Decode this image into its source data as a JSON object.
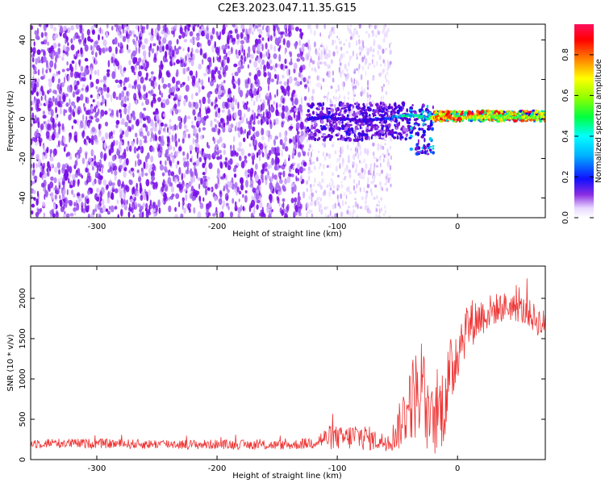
{
  "title": "C2E3.2023.047.11.35.G15",
  "chart_data": [
    {
      "type": "heatmap",
      "xlabel": "Height of straight line (km)",
      "ylabel": "Frequency (Hz)",
      "xlim": [
        -355,
        73
      ],
      "ylim": [
        -50,
        48
      ],
      "xticks": [
        -300,
        -200,
        -100,
        0
      ],
      "yticks": [
        -40,
        -20,
        0,
        20,
        40
      ],
      "colorbar": {
        "label": "Normalized spectral amplitude",
        "range": [
          0.0,
          0.95
        ],
        "ticks": [
          0.0,
          0.2,
          0.4,
          0.6,
          0.8
        ],
        "tick_labels": [
          "0.0",
          "0.2",
          "0.4",
          "0.6",
          "0.8"
        ]
      },
      "colormap_stops": [
        "#ffffff",
        "#d8b8ff",
        "#8a2be2",
        "#5a00d0",
        "#1010ff",
        "#00c8ff",
        "#00ff60",
        "#90ff00",
        "#ffff00",
        "#ff8000",
        "#ff0000",
        "#ff1060"
      ],
      "regions": [
        {
          "x_range": [
            -355,
            -125
          ],
          "freq_range": [
            -50,
            48
          ],
          "amplitude": 0.06,
          "note": "broadband noise, dense"
        },
        {
          "x_range": [
            -125,
            -55
          ],
          "freq_range": [
            -50,
            48
          ],
          "amplitude": 0.02,
          "note": "sparse noise streaks"
        },
        {
          "x_range": [
            -125,
            -40
          ],
          "freq_range": [
            -11,
            8
          ],
          "amplitude": 0.25
        },
        {
          "x_range": [
            -40,
            -20
          ],
          "freq_range": [
            -18,
            7
          ],
          "amplitude": 0.35
        },
        {
          "x_range": [
            -20,
            73
          ],
          "freq_range": [
            -1,
            4
          ],
          "amplitude": 0.7
        }
      ],
      "ridge": {
        "x": [
          -125,
          -110,
          -100,
          -90,
          -80,
          -70,
          -60,
          -50,
          -40,
          -30,
          -25,
          -20,
          -15,
          -10,
          -5,
          0,
          10,
          20,
          30,
          40,
          50,
          60,
          73
        ],
        "freq": [
          0,
          1,
          0,
          0,
          -1,
          0,
          0,
          1,
          2,
          1,
          0,
          1,
          0,
          1,
          0,
          0,
          1,
          1,
          1,
          1,
          1,
          1,
          1
        ],
        "amplitude": [
          0.3,
          0.35,
          0.3,
          0.3,
          0.3,
          0.35,
          0.35,
          0.45,
          0.5,
          0.5,
          0.45,
          0.8,
          0.85,
          0.9,
          0.85,
          0.9,
          0.7,
          0.65,
          0.65,
          0.65,
          0.65,
          0.65,
          0.65
        ]
      }
    },
    {
      "type": "line",
      "xlabel": "Height of straight line (km)",
      "ylabel": "SNR (10 * v/v)",
      "xlim": [
        -355,
        73
      ],
      "ylim": [
        0,
        2400
      ],
      "xticks": [
        -300,
        -200,
        -100,
        0
      ],
      "yticks": [
        0,
        500,
        1000,
        1500,
        2000
      ],
      "series": [
        {
          "color": "#ee3333",
          "x": [
            -355,
            -340,
            -320,
            -300,
            -280,
            -260,
            -240,
            -220,
            -200,
            -180,
            -160,
            -140,
            -125,
            -115,
            -105,
            -95,
            -85,
            -75,
            -65,
            -55,
            -48,
            -42,
            -36,
            -30,
            -24,
            -18,
            -12,
            -6,
            0,
            6,
            12,
            20,
            30,
            40,
            50,
            60,
            73
          ],
          "values": [
            200,
            205,
            200,
            200,
            195,
            190,
            195,
            185,
            190,
            185,
            180,
            180,
            200,
            240,
            280,
            260,
            290,
            270,
            220,
            250,
            420,
            650,
            800,
            900,
            450,
            500,
            700,
            1000,
            1400,
            1600,
            1700,
            1780,
            1860,
            1900,
            1880,
            1800,
            1650
          ],
          "spread": [
            60,
            60,
            60,
            60,
            60,
            60,
            60,
            60,
            60,
            60,
            60,
            60,
            70,
            110,
            160,
            140,
            180,
            160,
            110,
            150,
            300,
            450,
            550,
            700,
            400,
            450,
            550,
            500,
            420,
            350,
            300,
            250,
            200,
            180,
            180,
            180,
            200
          ]
        }
      ]
    }
  ]
}
